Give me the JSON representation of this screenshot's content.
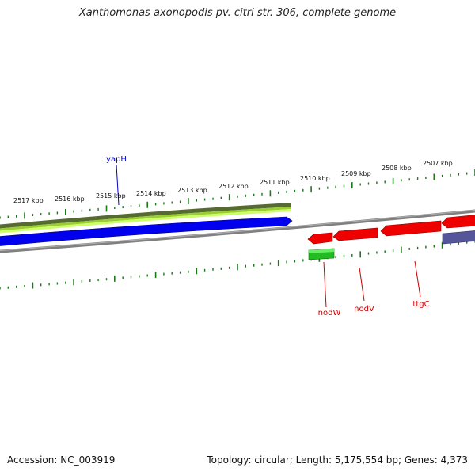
{
  "title": "Xanthomonas axonopodis pv. citri str. 306, complete genome",
  "footer": {
    "accession": "Accession: NC_003919",
    "summary": "Topology: circular; Length: 5,175,554 bp; Genes: 4,373"
  },
  "ruler_labels": [
    "2517 kbp",
    "2516 kbp",
    "2515 kbp",
    "2514 kbp",
    "2513 kbp",
    "2512 kbp",
    "2511 kbp",
    "2510 kbp",
    "2509 kbp",
    "2508 kbp",
    "2507 kbp"
  ],
  "genes": [
    {
      "name": "yapH",
      "color": "#0000cc"
    },
    {
      "name": "nodW",
      "color": "#cc0000"
    },
    {
      "name": "nodV",
      "color": "#cc0000"
    },
    {
      "name": "ttgC",
      "color": "#cc0000"
    }
  ],
  "colors": {
    "ruler": "#1a7a1a",
    "backbone": "#808080",
    "forward_gene": "#0000ee",
    "reverse_gene": "#ee0000",
    "rna_band": "#556b2f",
    "feature_band": "#9acd32",
    "green_feature": "#22bb22",
    "purple_feature": "#555599"
  }
}
